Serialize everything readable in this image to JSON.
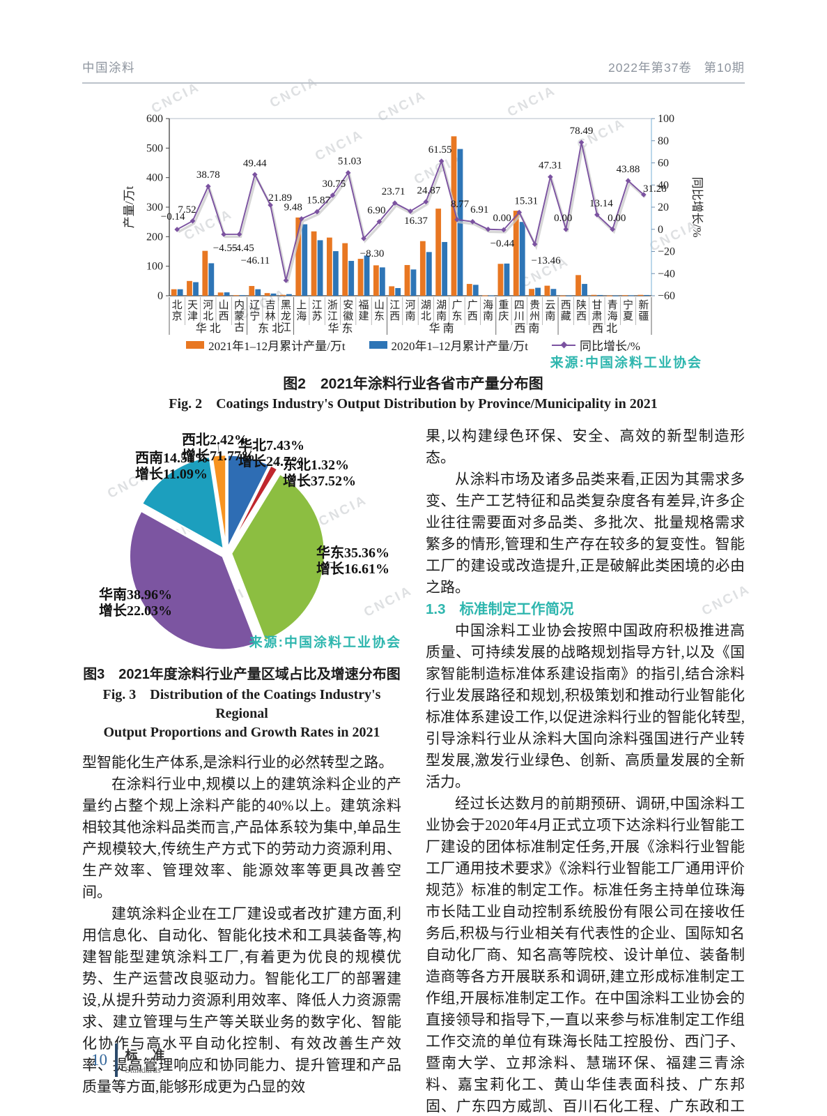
{
  "header": {
    "journal": "中国涂料",
    "volume": "2022年第37卷",
    "issue_no": "第10期"
  },
  "watermark": {
    "text": "CNCIA"
  },
  "colors": {
    "accent_teal": "#2eb6ae",
    "footer_blue": "#33669a",
    "bar_2021": "#E87722",
    "bar_2020": "#2E75B6",
    "growth_line": "#7B52A0"
  },
  "figure2": {
    "caption_zh": "图2　2021年涂料行业各省市产量分布图",
    "caption_en": "Fig. 2　Coatings Industry's Output Distribution by Province/Municipality in 2021",
    "source": "来源:中国涂料工业协会"
  },
  "figure3": {
    "caption_zh": "图3　2021年度涂料行业产量区域占比及增速分布图",
    "caption_en_1": "Fig. 3　Distribution of the Coatings Industry's Regional",
    "caption_en_2": "Output Proportions and Growth Rates in 2021",
    "source": "来源:中国涂料工业协会"
  },
  "chart_data": [
    {
      "type": "bar",
      "title": "2021年涂料行业各省市产量分布图",
      "categories": [
        "北京",
        "天津",
        "河北",
        "山西",
        "内蒙古",
        "辽宁",
        "吉林",
        "黑龙江",
        "上海",
        "江苏",
        "浙江",
        "安徽",
        "福建",
        "山东",
        "江西",
        "河南",
        "湖北",
        "湖南",
        "广东",
        "广西",
        "海南",
        "重庆",
        "四川",
        "贵州",
        "云南",
        "西藏",
        "陕西",
        "甘肃",
        "青海",
        "宁夏",
        "新疆"
      ],
      "region_groups": [
        {
          "label": "华 北",
          "count": 5
        },
        {
          "label": "东 北",
          "count": 3
        },
        {
          "label": "华 东",
          "count": 6
        },
        {
          "label": "华 南",
          "count": 7
        },
        {
          "label": "西 南",
          "count": 4
        },
        {
          "label": "西 北",
          "count": 6
        }
      ],
      "series": [
        {
          "name": "2021年1–12月累计产量/万t",
          "type": "bar",
          "color": "#E87722",
          "values": [
            22,
            50,
            152,
            11,
            2,
            33,
            9,
            3,
            265,
            218,
            197,
            178,
            125,
            103,
            32,
            104,
            185,
            295,
            540,
            40,
            1,
            108,
            288,
            23,
            34,
            0.5,
            70,
            3,
            0.5,
            2,
            3
          ]
        },
        {
          "name": "2020年1–12月累计产量/万t",
          "type": "bar",
          "color": "#2E75B6",
          "values": [
            22,
            46,
            110,
            11.5,
            2,
            22,
            7.5,
            5.5,
            242,
            188,
            151,
            118,
            136,
            96,
            26,
            89,
            148,
            182,
            497,
            37,
            1,
            109,
            250,
            27,
            23,
            0.5,
            40,
            2.5,
            0.5,
            1.5,
            2.5
          ]
        },
        {
          "name": "同比增长/%",
          "type": "line",
          "color": "#7B52A0",
          "values": [
            -0.14,
            7.52,
            38.78,
            -4.55,
            -4.45,
            49.44,
            21.89,
            -46.11,
            9.48,
            15.87,
            30.75,
            51.03,
            -8.3,
            6.9,
            23.71,
            16.37,
            24.87,
            61.55,
            8.77,
            6.91,
            0.0,
            -0.44,
            15.31,
            -13.46,
            47.31,
            0.0,
            78.49,
            13.14,
            0.0,
            43.88,
            31.28
          ]
        }
      ],
      "ylabel_left": "产量/万t",
      "ylabel_right": "同比增长/%",
      "ylim_left": [
        0,
        600
      ],
      "ylim_right": [
        -60,
        100
      ],
      "yticks_left": [
        0,
        100,
        200,
        300,
        400,
        500,
        600
      ],
      "yticks_right": [
        -60,
        -40,
        -20,
        0,
        20,
        40,
        60,
        80,
        100
      ],
      "grid": false,
      "legend_position": "bottom"
    },
    {
      "type": "pie",
      "title": "2021年度涂料行业产量区域占比及增速分布图",
      "slices": [
        {
          "name": "华北",
          "pct": 7.43,
          "growth": 24.7,
          "color": "#2E6DB4",
          "label": "华北7.43%",
          "label2": "增长24.7%"
        },
        {
          "name": "东北",
          "pct": 1.32,
          "growth": 37.52,
          "color": "#C0272D",
          "label": "东北1.32%",
          "label2": "增长37.52%"
        },
        {
          "name": "华东",
          "pct": 35.36,
          "growth": 16.61,
          "color": "#8CBE41",
          "label": "华东35.36%",
          "label2": "增长16.61%"
        },
        {
          "name": "华南",
          "pct": 38.96,
          "growth": 22.03,
          "color": "#7C55A1",
          "label": "华南38.96%",
          "label2": "增长22.03%"
        },
        {
          "name": "西南",
          "pct": 14.51,
          "growth": 11.09,
          "color": "#1C9FBE",
          "label": "西南14.51%",
          "label2": "增长11.09%"
        },
        {
          "name": "西北",
          "pct": 2.42,
          "growth": 71.77,
          "color": "#F79321",
          "label": "西北2.42%",
          "label2": "增长71.77%"
        }
      ],
      "start_angle": "12-oclock-clockwise"
    }
  ],
  "left_column": {
    "p1": "型智能化生产体系,是涂料行业的必然转型之路。",
    "p2": "在涂料行业中,规模以上的建筑涂料企业的产量约占整个规上涂料产能的40%以上。建筑涂料相较其他涂料品类而言,产品体系较为集中,单品生产规模较大,传统生产方式下的劳动力资源利用、生产效率、管理效率、能源效率等更具改善空间。",
    "p3": "建筑涂料企业在工厂建设或者改扩建方面,利用信息化、自动化、智能化技术和工具装备等,构建智能型建筑涂料工厂,有着更为优良的规模优势、生产运营改良驱动力。智能化工厂的部署建设,从提升劳动力资源利用效率、降低人力资源需求、建立管理与生产等关联业务的数字化、智能化协作与高水平自动化控制、有效改善生产效率、提高管理响应和协同能力、提升管理和产品质量等方面,能够形成更为凸显的效"
  },
  "right_column": {
    "p1": "果,以构建绿色环保、安全、高效的新型制造形态。",
    "p2": "从涂料市场及诸多品类来看,正因为其需求多变、生产工艺特征和品类复杂度各有差异,许多企业往往需要面对多品类、多批次、批量规格需求繁多的情形,管理和生产存在较多的复变性。智能工厂的建设或改造提升,正是破解此类困境的必由之路。",
    "heading_no": "1.3",
    "heading_title": "标准制定工作简况",
    "p3": "中国涂料工业协会按照中国政府积极推进高质量、可持续发展的战略规划指导方针,以及《国家智能制造标准体系建设指南》的指引,结合涂料行业发展路径和规划,积极策划和推动行业智能化标准体系建设工作,以促进涂料行业的智能化转型,引导涂料行业从涂料大国向涂料强国进行产业转型发展,激发行业绿色、创新、高质量发展的全新活力。",
    "p4": "经过长达数月的前期预研、调研,中国涂料工业协会于2020年4月正式立项下达涂料行业智能工厂建设的团体标准制定任务,开展《涂料行业智能工厂通用技术要求》《涂料行业智能工厂通用评价规范》标准的制定工作。标准任务主持单位珠海市长陆工业自动控制系统股份有限公司在接收任务后,积极与行业相关有代表性的企业、国际知名自动化厂商、知名高等院校、设计单位、装备制造商等各方开展联系和调研,建立形成标准制定工作组,开展标准制定工作。在中国涂料工业协会的直接领导和指导下,一直以来参与标准制定工作组工作交流的单位有珠海长陆工控股份、西门子、暨南大学、立邦涂料、慧瑞环保、福建三青涂料、嘉宝莉化工、黄山华佳表面科技、广东邦固、广东四方威凯、百川石化工程、广东政和工程、温州英可尔油墨等单位。"
  },
  "footer": {
    "page_number": "10",
    "section_zh": "标 准",
    "section_en": "Standards"
  }
}
